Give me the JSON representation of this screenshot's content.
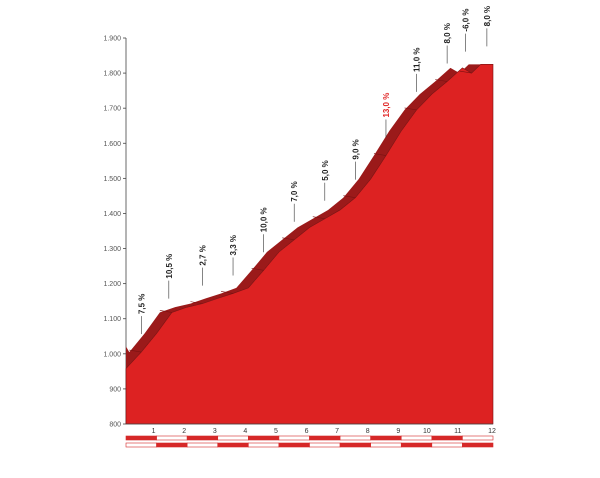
{
  "chart_data": {
    "type": "area",
    "title": "",
    "xlabel": "",
    "ylabel": "",
    "xlim": [
      0,
      12
    ],
    "ylim": [
      800,
      1900
    ],
    "y_ticks": [
      "800",
      "900",
      "1.000",
      "1.100",
      "1.200",
      "1.300",
      "1.400",
      "1.500",
      "1.600",
      "1.700",
      "1.800",
      "1.900"
    ],
    "y_tick_values": [
      800,
      900,
      1000,
      1100,
      1200,
      1300,
      1400,
      1500,
      1600,
      1700,
      1800,
      1900
    ],
    "x_ticks": [
      "1",
      "2",
      "3",
      "4",
      "5",
      "6",
      "7",
      "8",
      "9",
      "10",
      "11",
      "12"
    ],
    "x_tick_values": [
      1,
      2,
      3,
      4,
      5,
      6,
      7,
      8,
      9,
      10,
      11,
      12
    ],
    "profile": {
      "x": [
        0,
        0.5,
        1.0,
        1.5,
        2.0,
        2.5,
        3.0,
        3.5,
        4.0,
        4.5,
        5.0,
        5.5,
        6.0,
        6.5,
        7.0,
        7.5,
        8.0,
        8.5,
        9.0,
        9.5,
        10.0,
        10.5,
        11.0,
        11.3,
        11.6,
        12.0
      ],
      "y": [
        958,
        1005,
        1058,
        1118,
        1133,
        1143,
        1158,
        1172,
        1188,
        1238,
        1290,
        1325,
        1360,
        1385,
        1410,
        1445,
        1498,
        1565,
        1635,
        1695,
        1740,
        1776,
        1815,
        1800,
        1825,
        1825
      ]
    },
    "grades": [
      {
        "x": 0.5,
        "label": "7,5 %",
        "steep": false
      },
      {
        "x": 1.4,
        "label": "10,5 %",
        "steep": false
      },
      {
        "x": 2.5,
        "label": "2,7 %",
        "steep": false
      },
      {
        "x": 3.5,
        "label": "3,3 %",
        "steep": false
      },
      {
        "x": 4.5,
        "label": "10,0 %",
        "steep": false
      },
      {
        "x": 5.5,
        "label": "7,0 %",
        "steep": false
      },
      {
        "x": 6.5,
        "label": "5,0 %",
        "steep": false
      },
      {
        "x": 7.5,
        "label": "9,0 %",
        "steep": false
      },
      {
        "x": 8.5,
        "label": "13,0 %",
        "steep": true
      },
      {
        "x": 9.5,
        "label": "11,0 %",
        "steep": false
      },
      {
        "x": 10.5,
        "label": "8,0 %",
        "steep": false
      },
      {
        "x": 11.1,
        "label": "-6,0 %",
        "steep": false
      },
      {
        "x": 11.8,
        "label": "8,0 %",
        "steep": false
      }
    ]
  },
  "colors": {
    "fill": "#dd2222",
    "top_band": "#9b1a1a",
    "outline": "#7a1212",
    "axis": "#444444",
    "grade_text": "#222222",
    "steep_text": "#e02424",
    "scale_red": "#d62828",
    "scale_white": "#ffffff"
  }
}
